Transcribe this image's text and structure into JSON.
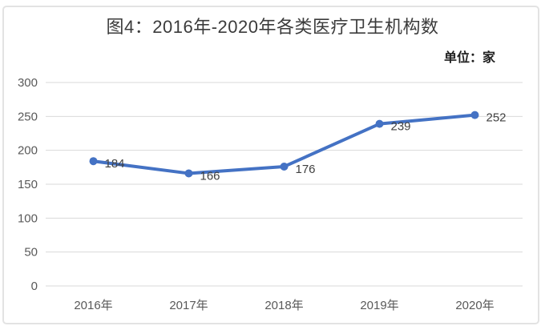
{
  "chart_data": {
    "type": "line",
    "title": "图4：2016年-2020年各类医疗卫生机构数",
    "unit": "单位：家",
    "categories": [
      "2016年",
      "2017年",
      "2018年",
      "2019年",
      "2020年"
    ],
    "values": [
      184,
      166,
      176,
      239,
      252
    ],
    "ylim": [
      0,
      300
    ],
    "y_ticks": [
      0,
      50,
      100,
      150,
      200,
      250,
      300
    ],
    "xlabel": "",
    "ylabel": "",
    "grid": "horizontal",
    "legend": "none",
    "data_labels_shown": true,
    "colors": {
      "line": "#4472C4",
      "marker": "#4472C4",
      "grid": "#d9d9d9",
      "axis_text": "#595959",
      "data_label": "#404040",
      "title_text": "#3b3b3b",
      "unit_text": "#1f1f1f",
      "frame_border": "#e3e3e3",
      "background": "#ffffff"
    }
  }
}
